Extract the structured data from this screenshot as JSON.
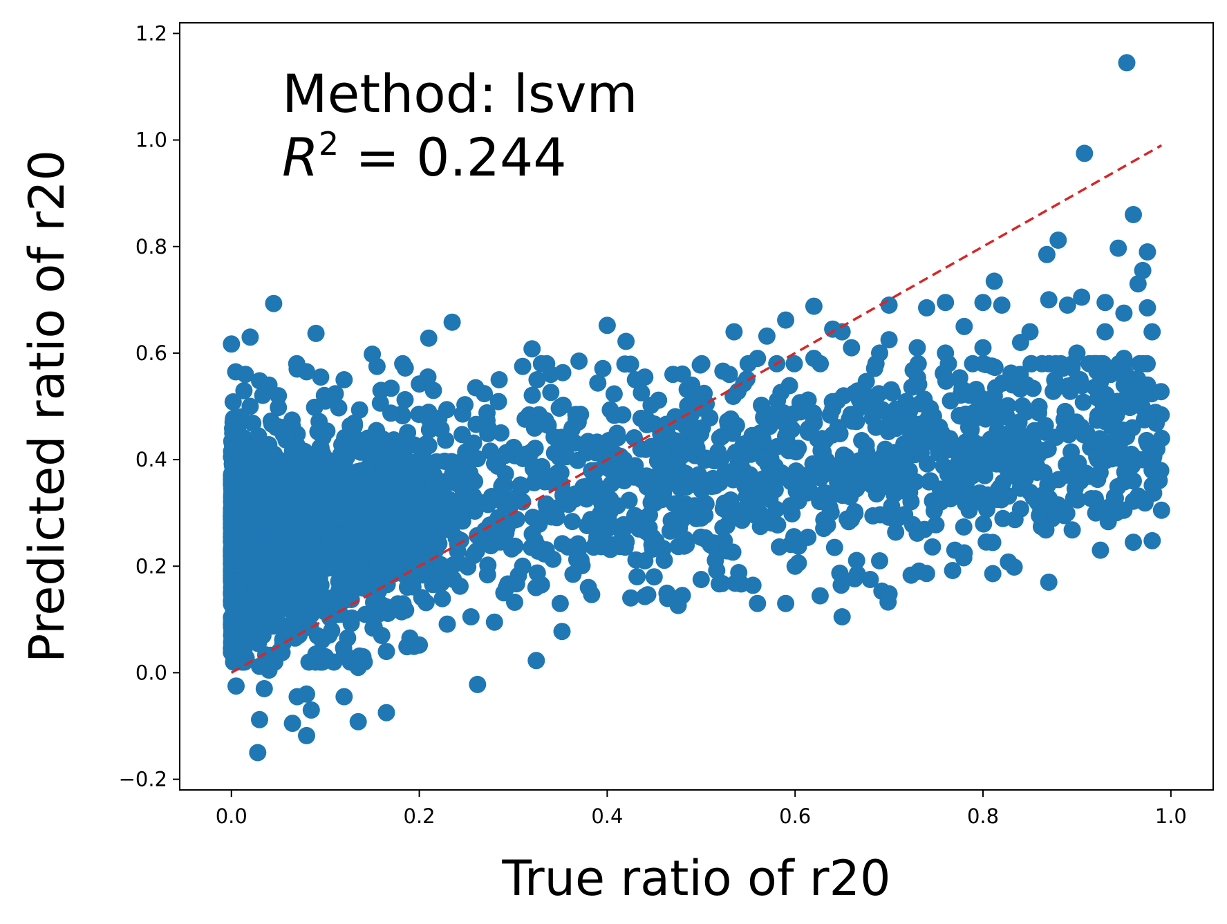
{
  "chart_data": {
    "type": "scatter",
    "title": "",
    "xlabel": "True ratio of r20",
    "ylabel": "Predicted ratio of r20",
    "xlim": [
      -0.055,
      1.045
    ],
    "ylim": [
      -0.22,
      1.22
    ],
    "xticks": [
      0.0,
      0.2,
      0.4,
      0.6,
      0.8,
      1.0
    ],
    "yticks": [
      -0.2,
      0.0,
      0.2,
      0.4,
      0.6,
      0.8,
      1.0,
      1.2
    ],
    "xtick_labels": [
      "0.0",
      "0.2",
      "0.4",
      "0.6",
      "0.8",
      "1.0"
    ],
    "ytick_labels": [
      "−0.2",
      "0.0",
      "0.2",
      "0.4",
      "0.6",
      "0.8",
      "1.0",
      "1.2"
    ],
    "grid": false,
    "point_color": "#1f77b4",
    "reference_line": {
      "style": "dashed",
      "color": "#d62728",
      "x": [
        0.0,
        0.99
      ],
      "y": [
        0.0,
        0.99
      ]
    },
    "annotation": {
      "method_line": "Method: lsvm",
      "r2_symbol": "R",
      "r2_exponent": "2",
      "r2_value": " = 0.244"
    },
    "series": [
      {
        "points": [
          [
            0.953,
            1.145
          ],
          [
            0.908,
            0.975
          ],
          [
            0.96,
            0.86
          ],
          [
            0.944,
            0.797
          ],
          [
            0.88,
            0.812
          ],
          [
            0.868,
            0.785
          ],
          [
            0.975,
            0.79
          ],
          [
            0.97,
            0.755
          ],
          [
            0.965,
            0.73
          ],
          [
            0.812,
            0.735
          ],
          [
            0.905,
            0.705
          ],
          [
            0.87,
            0.7
          ],
          [
            0.89,
            0.69
          ],
          [
            0.93,
            0.695
          ],
          [
            0.95,
            0.675
          ],
          [
            0.975,
            0.685
          ],
          [
            0.8,
            0.695
          ],
          [
            0.82,
            0.69
          ],
          [
            0.76,
            0.695
          ],
          [
            0.74,
            0.685
          ],
          [
            0.7,
            0.69
          ],
          [
            0.62,
            0.688
          ],
          [
            0.045,
            0.693
          ],
          [
            0.09,
            0.637
          ],
          [
            0.02,
            0.63
          ],
          [
            0.0,
            0.617
          ],
          [
            0.15,
            0.598
          ],
          [
            0.21,
            0.628
          ],
          [
            0.235,
            0.658
          ],
          [
            0.4,
            0.652
          ],
          [
            0.42,
            0.622
          ],
          [
            0.32,
            0.608
          ],
          [
            0.535,
            0.64
          ],
          [
            0.57,
            0.632
          ],
          [
            0.59,
            0.662
          ],
          [
            0.64,
            0.645
          ],
          [
            0.65,
            0.64
          ],
          [
            0.7,
            0.625
          ],
          [
            0.78,
            0.65
          ],
          [
            0.85,
            0.64
          ],
          [
            0.98,
            0.64
          ],
          [
            0.93,
            0.64
          ],
          [
            0.88,
            0.315
          ],
          [
            0.86,
            0.295
          ],
          [
            0.87,
            0.17
          ],
          [
            0.44,
            0.143
          ],
          [
            0.48,
            0.145
          ],
          [
            0.56,
            0.13
          ],
          [
            0.59,
            0.13
          ],
          [
            0.65,
            0.105
          ],
          [
            0.7,
            0.148
          ],
          [
            0.35,
            0.13
          ],
          [
            0.28,
            0.095
          ],
          [
            0.255,
            0.105
          ],
          [
            0.2,
            0.052
          ],
          [
            0.19,
            0.065
          ],
          [
            0.16,
            0.07
          ],
          [
            0.165,
            0.04
          ],
          [
            0.14,
            0.03
          ],
          [
            0.135,
            0.01
          ],
          [
            0.0,
            0.038
          ],
          [
            0.01,
            0.05
          ],
          [
            0.03,
            0.012
          ],
          [
            0.04,
            0.005
          ],
          [
            0.005,
            -0.025
          ],
          [
            0.035,
            -0.03
          ],
          [
            0.07,
            -0.045
          ],
          [
            0.08,
            -0.04
          ],
          [
            0.085,
            -0.07
          ],
          [
            0.065,
            -0.095
          ],
          [
            0.08,
            -0.118
          ],
          [
            0.03,
            -0.088
          ],
          [
            0.028,
            -0.15
          ],
          [
            0.12,
            -0.045
          ],
          [
            0.135,
            -0.092
          ],
          [
            0.165,
            -0.075
          ],
          [
            0.262,
            -0.022
          ],
          [
            0.09,
            0.035
          ],
          [
            0.1,
            0.03
          ],
          [
            0.96,
            0.245
          ],
          [
            0.925,
            0.23
          ],
          [
            0.895,
            0.268
          ],
          [
            0.95,
            0.305
          ],
          [
            0.99,
            0.305
          ],
          [
            0.78,
            0.225
          ],
          [
            0.77,
            0.23
          ],
          [
            0.73,
            0.262
          ],
          [
            0.68,
            0.175
          ],
          [
            0.69,
            0.21
          ],
          [
            0.6,
            0.2
          ],
          [
            0.51,
            0.24
          ],
          [
            0.5,
            0.175
          ],
          [
            0.54,
            0.188
          ],
          [
            0.44,
            0.21
          ],
          [
            0.45,
            0.18
          ],
          [
            0.38,
            0.16
          ],
          [
            0.33,
            0.165
          ],
          [
            0.29,
            0.15
          ],
          [
            0.31,
            0.2
          ],
          [
            0.56,
            0.59
          ],
          [
            0.55,
            0.58
          ],
          [
            0.62,
            0.59
          ],
          [
            0.66,
            0.61
          ],
          [
            0.69,
            0.6
          ],
          [
            0.73,
            0.61
          ],
          [
            0.76,
            0.6
          ],
          [
            0.8,
            0.61
          ],
          [
            0.84,
            0.62
          ],
          [
            0.9,
            0.6
          ],
          [
            0.92,
            0.58
          ],
          [
            0.95,
            0.59
          ],
          [
            0.97,
            0.58
          ],
          [
            0.99,
            0.44
          ],
          [
            0.985,
            0.42
          ],
          [
            0.975,
            0.48
          ],
          [
            0.98,
            0.38
          ],
          [
            0.97,
            0.4
          ],
          [
            0.96,
            0.36
          ],
          [
            0.94,
            0.33
          ],
          [
            0.92,
            0.3
          ],
          [
            0.015,
            0.56
          ],
          [
            0.03,
            0.548
          ],
          [
            0.04,
            0.54
          ],
          [
            0.07,
            0.57
          ],
          [
            0.08,
            0.565
          ],
          [
            0.095,
            0.555
          ],
          [
            0.12,
            0.55
          ],
          [
            0.155,
            0.575
          ],
          [
            0.185,
            0.572
          ],
          [
            0.2,
            0.542
          ],
          [
            0.215,
            0.53
          ],
          [
            0.26,
            0.535
          ],
          [
            0.285,
            0.55
          ],
          [
            0.31,
            0.575
          ],
          [
            0.33,
            0.58
          ],
          [
            0.34,
            0.56
          ],
          [
            0.37,
            0.585
          ],
          [
            0.43,
            0.55
          ],
          [
            0.44,
            0.555
          ],
          [
            0.47,
            0.56
          ],
          [
            0.49,
            0.54
          ],
          [
            0.53,
            0.56
          ],
          [
            0.1,
            0.51
          ],
          [
            0.05,
            0.52
          ],
          [
            0.02,
            0.5
          ],
          [
            0.01,
            0.48
          ]
        ]
      }
    ]
  }
}
